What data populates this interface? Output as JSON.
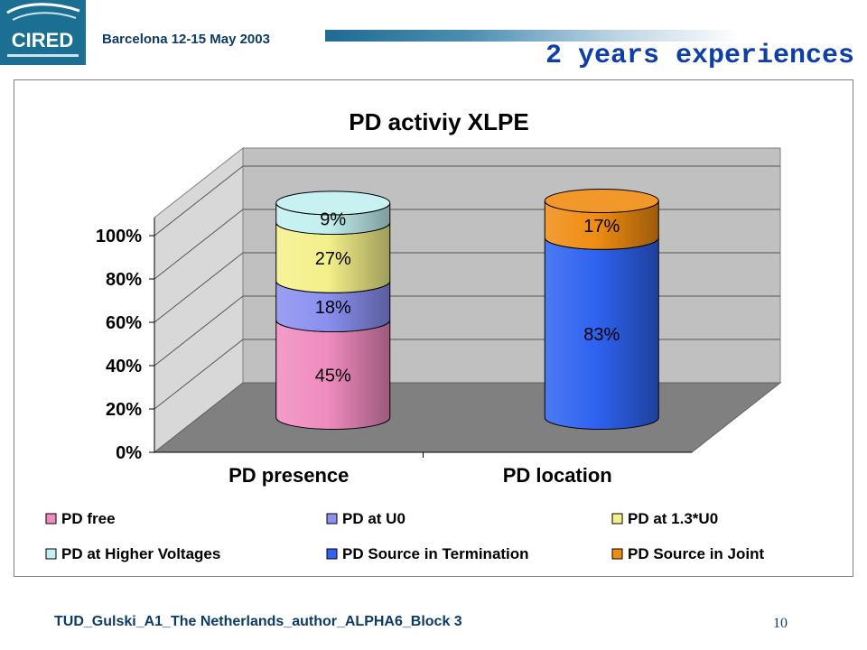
{
  "header": {
    "logo_text": "CIRED",
    "conference": "Barcelona  12-15 May 2003",
    "slide_title": "2 years experiences"
  },
  "footer": {
    "text": "TUD_Gulski_A1_The Netherlands_author_ALPHA6_Block  3",
    "page_number": "10"
  },
  "chart_data": {
    "type": "bar",
    "stacked": true,
    "style": "3d-cylinder",
    "title": "PD activiy XLPE",
    "categories": [
      "PD presence",
      "PD location"
    ],
    "yticks": [
      "0%",
      "20%",
      "40%",
      "60%",
      "80%",
      "100%"
    ],
    "ylim": [
      0,
      100
    ],
    "grid": true,
    "legend_position": "bottom",
    "series": [
      {
        "name": "PD free",
        "values": [
          45,
          0
        ],
        "labels": [
          "45%",
          ""
        ],
        "color": "#f08bbf"
      },
      {
        "name": "PD at U0",
        "values": [
          18,
          0
        ],
        "labels": [
          "18%",
          ""
        ],
        "color": "#8a8ff0"
      },
      {
        "name": "PD at 1.3*U0",
        "values": [
          27,
          0
        ],
        "labels": [
          "27%",
          ""
        ],
        "color": "#f4f08a"
      },
      {
        "name": "PD at Higher Voltages",
        "values": [
          9,
          0
        ],
        "labels": [
          "9%",
          ""
        ],
        "color": "#c2f0f0"
      },
      {
        "name": "PD Source in Termination",
        "values": [
          0,
          83
        ],
        "labels": [
          "",
          "83%"
        ],
        "color": "#2e62f0"
      },
      {
        "name": "PD Source in Joint",
        "values": [
          0,
          17
        ],
        "labels": [
          "",
          "17%"
        ],
        "color": "#f08c12"
      }
    ]
  }
}
